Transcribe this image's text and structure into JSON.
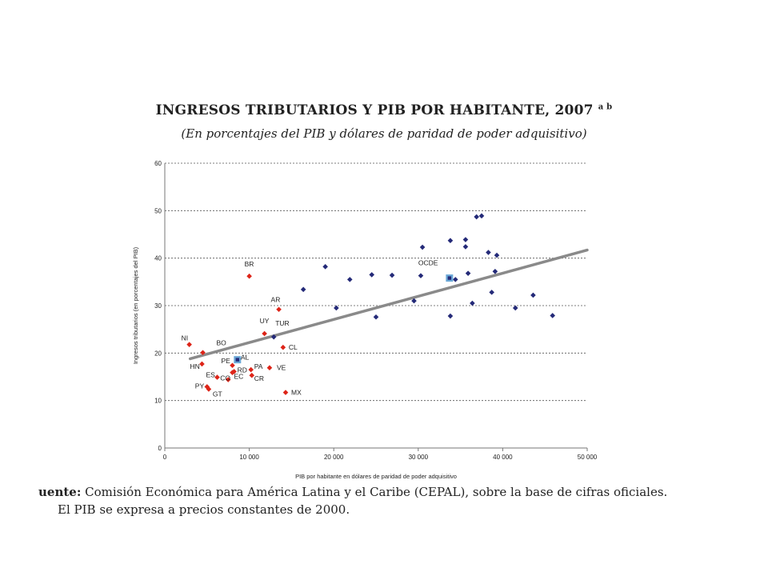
{
  "header": {
    "title": "INGRESOS TRIBUTARIOS Y PIB POR HABITANTE, 2007",
    "title_note": "a b",
    "subtitle": "(En porcentajes del PIB y dólares de paridad de poder adquisitivo)"
  },
  "footer": {
    "source_label": "uente:",
    "source_text": "Comisión Económica para América Latina y el Caribe (CEPAL), sobre la base de cifras oficiales.",
    "note_text": "El PIB se expresa a precios constantes de 2000."
  },
  "chart_data": {
    "type": "scatter",
    "xlabel": "PIB por habitante en dólares de paridad de poder adquisitivo",
    "ylabel": "Ingresos tributarios (en porcentajes del PIB)",
    "xlim": [
      0,
      50000
    ],
    "ylim": [
      0,
      60
    ],
    "x_ticks": [
      0,
      10000,
      20000,
      30000,
      40000,
      50000
    ],
    "x_tick_labels": [
      "0",
      "10 000",
      "20 000",
      "30 000",
      "40 000",
      "50 000"
    ],
    "y_ticks": [
      0,
      10,
      20,
      30,
      40,
      50,
      60
    ],
    "y_tick_labels": [
      "0",
      "10",
      "20",
      "30",
      "40",
      "50",
      "60"
    ],
    "grid": "horizontal dashed",
    "colors": {
      "latam": "#dd2418",
      "oecd": "#242a78",
      "trend": "#8a8a8a",
      "average_fill": "#6aa7d6"
    },
    "trendline": {
      "x": [
        3000,
        50000
      ],
      "y": [
        18.8,
        41.7
      ]
    },
    "latam_points": [
      {
        "label": "NI",
        "x": 2900,
        "y": 21.8
      },
      {
        "label": "BO",
        "x": 4500,
        "y": 20.1
      },
      {
        "label": "HN",
        "x": 4400,
        "y": 17.7
      },
      {
        "label": "PY",
        "x": 5000,
        "y": 12.9
      },
      {
        "label": "GT",
        "x": 5200,
        "y": 12.4
      },
      {
        "label": "ES",
        "x": 6200,
        "y": 14.9
      },
      {
        "label": "CO",
        "x": 7500,
        "y": 14.4
      },
      {
        "label": "EC",
        "x": 8000,
        "y": 15.9
      },
      {
        "label": "PE",
        "x": 8000,
        "y": 17.4
      },
      {
        "label": "RD",
        "x": 8200,
        "y": 16.1
      },
      {
        "label": "BR",
        "x": 10000,
        "y": 36.2
      },
      {
        "label": "PA",
        "x": 10200,
        "y": 16.5
      },
      {
        "label": "CR",
        "x": 10300,
        "y": 15.3
      },
      {
        "label": "UY",
        "x": 11800,
        "y": 24.1
      },
      {
        "label": "VE",
        "x": 12400,
        "y": 16.9
      },
      {
        "label": "AR",
        "x": 13500,
        "y": 29.2
      },
      {
        "label": "CL",
        "x": 14000,
        "y": 21.2
      },
      {
        "label": "MX",
        "x": 14300,
        "y": 11.7
      }
    ],
    "oecd_points": [
      {
        "label": "TUR",
        "x": 12900,
        "y": 23.4
      },
      {
        "label": "",
        "x": 16400,
        "y": 33.4
      },
      {
        "label": "",
        "x": 19000,
        "y": 38.2
      },
      {
        "label": "",
        "x": 20300,
        "y": 29.5
      },
      {
        "label": "",
        "x": 21900,
        "y": 35.5
      },
      {
        "label": "",
        "x": 24500,
        "y": 36.5
      },
      {
        "label": "",
        "x": 25000,
        "y": 27.6
      },
      {
        "label": "",
        "x": 26900,
        "y": 36.4
      },
      {
        "label": "",
        "x": 29500,
        "y": 31.0
      },
      {
        "label": "",
        "x": 30300,
        "y": 36.3
      },
      {
        "label": "",
        "x": 30500,
        "y": 42.3
      },
      {
        "label": "",
        "x": 33800,
        "y": 43.7
      },
      {
        "label": "",
        "x": 33800,
        "y": 27.8
      },
      {
        "label": "",
        "x": 34400,
        "y": 35.5
      },
      {
        "label": "",
        "x": 35600,
        "y": 43.9
      },
      {
        "label": "",
        "x": 35600,
        "y": 42.4
      },
      {
        "label": "",
        "x": 35900,
        "y": 36.8
      },
      {
        "label": "",
        "x": 36400,
        "y": 30.5
      },
      {
        "label": "",
        "x": 36900,
        "y": 48.7
      },
      {
        "label": "",
        "x": 37500,
        "y": 48.9
      },
      {
        "label": "",
        "x": 38300,
        "y": 41.2
      },
      {
        "label": "",
        "x": 38700,
        "y": 32.8
      },
      {
        "label": "",
        "x": 39100,
        "y": 37.2
      },
      {
        "label": "",
        "x": 39300,
        "y": 40.6
      },
      {
        "label": "",
        "x": 41500,
        "y": 29.5
      },
      {
        "label": "",
        "x": 43600,
        "y": 32.2
      },
      {
        "label": "",
        "x": 45900,
        "y": 27.9
      }
    ],
    "averages": [
      {
        "label": "OCDE",
        "x": 33700,
        "y": 35.8
      },
      {
        "label": "AL",
        "x": 8600,
        "y": 18.6
      }
    ]
  }
}
